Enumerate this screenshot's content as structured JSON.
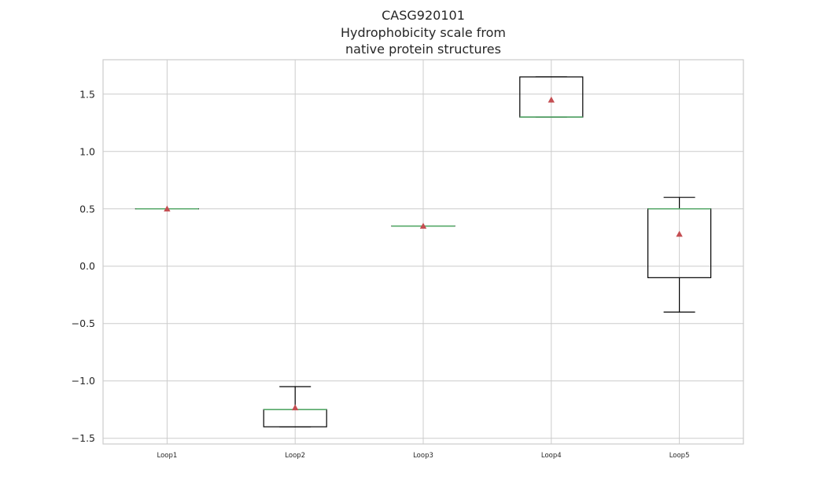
{
  "chart_data": {
    "type": "box",
    "title": [
      "CASG920101",
      "Hydrophobicity scale from",
      "native protein structures"
    ],
    "xlabel": "",
    "ylabel": "",
    "ylim": [
      -1.55,
      1.8
    ],
    "yticks": [
      1.5,
      1.0,
      0.5,
      0.0,
      -0.5,
      -1.0,
      -1.5
    ],
    "ytick_labels": [
      "1.5",
      "1.0",
      "0.5",
      "0.0",
      "−0.5",
      "−1.0",
      "−1.5"
    ],
    "categories": [
      "Loop1",
      "Loop2",
      "Loop3",
      "Loop4",
      "Loop5"
    ],
    "boxes": [
      {
        "label": "Loop1",
        "whislo": 0.5,
        "q1": 0.5,
        "med": 0.5,
        "q3": 0.5,
        "whishi": 0.5,
        "mean": 0.5
      },
      {
        "label": "Loop2",
        "whislo": -1.4,
        "q1": -1.4,
        "med": -1.25,
        "q3": -1.25,
        "whishi": -1.05,
        "mean": -1.233
      },
      {
        "label": "Loop3",
        "whislo": 0.35,
        "q1": 0.35,
        "med": 0.35,
        "q3": 0.35,
        "whishi": 0.35,
        "mean": 0.35
      },
      {
        "label": "Loop4",
        "whislo": 1.3,
        "q1": 1.3,
        "med": 1.3,
        "q3": 1.65,
        "whishi": 1.65,
        "mean": 1.45
      },
      {
        "label": "Loop5",
        "whislo": -0.4,
        "q1": -0.1,
        "med": 0.5,
        "q3": 0.5,
        "whishi": 0.6,
        "mean": 0.28
      }
    ],
    "grid": true,
    "colors": {
      "box": "#000000",
      "median": "#55a868",
      "mean_marker": "#c44e52",
      "grid": "#cccccc"
    }
  }
}
